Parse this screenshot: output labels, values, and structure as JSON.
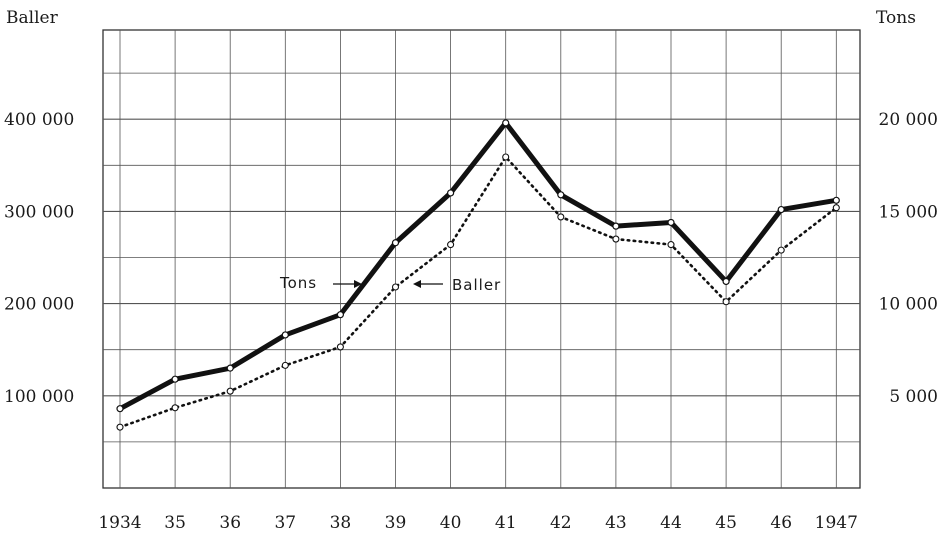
{
  "chart_data": {
    "type": "line",
    "x": [
      "1934",
      "35",
      "36",
      "37",
      "38",
      "39",
      "40",
      "41",
      "42",
      "43",
      "44",
      "45",
      "46",
      "1947"
    ],
    "left_axis_title": "Baller",
    "right_axis_title": "Tons",
    "left_ticks": [
      "100 000",
      "200 000",
      "300 000",
      "400 000"
    ],
    "right_ticks": [
      "5 000",
      "10 000",
      "15 000",
      "20 000"
    ],
    "left_ylim": [
      0,
      420000
    ],
    "right_ylim": [
      0,
      21000
    ],
    "grid": true,
    "series": [
      {
        "name": "Tons",
        "axis": "right",
        "style": "solid-thick",
        "values": [
          4300,
          5900,
          6500,
          8300,
          9400,
          13300,
          16000,
          19800,
          15900,
          14200,
          14400,
          11200,
          15100,
          15600
        ]
      },
      {
        "name": "Baller",
        "axis": "left",
        "style": "dotted",
        "values": [
          66000,
          87000,
          105000,
          133000,
          153000,
          218000,
          264000,
          359000,
          294000,
          270000,
          264000,
          202000,
          258000,
          304000
        ]
      }
    ],
    "annotations": [
      {
        "text": "Tons",
        "series": "Tons"
      },
      {
        "text": "Baller",
        "series": "Baller"
      }
    ]
  }
}
